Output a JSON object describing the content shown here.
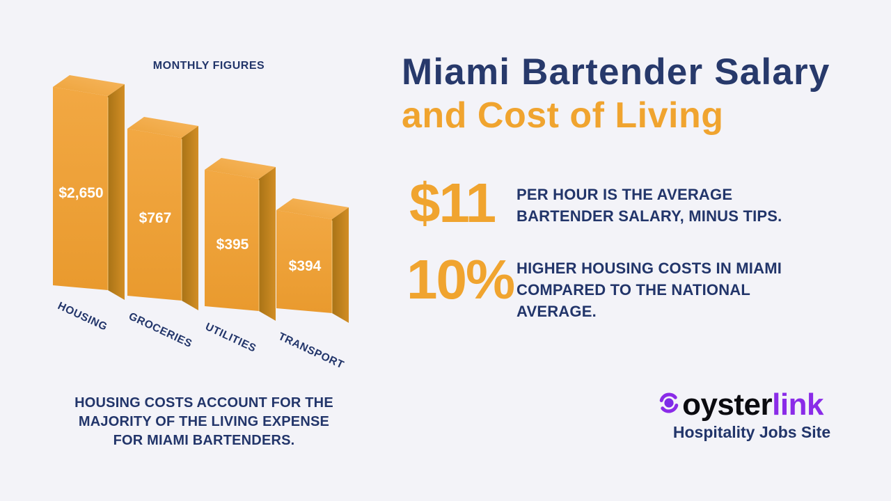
{
  "page": {
    "background": "#f3f3f8"
  },
  "chart": {
    "heading": "MONTHLY FIGURES",
    "caption_lines": [
      "HOUSING COSTS ACCOUNT FOR THE",
      "MAJORITY OF THE LIVING EXPENSE",
      "FOR MIAMI BARTENDERS."
    ]
  },
  "chart_data": {
    "type": "bar",
    "style": "3d-column-infographic",
    "title": "MONTHLY FIGURES",
    "categories": [
      "HOUSING",
      "GROCERIES",
      "UTILITIES",
      "TRANSPORT"
    ],
    "values": [
      2650,
      767,
      395,
      394
    ],
    "value_labels": [
      "$2,650",
      "$767",
      "$395",
      "$394"
    ],
    "legend": "none",
    "grid": false,
    "bar_front_color": "#EEA136",
    "bar_side_color": "#C08119",
    "bar_top_color": "#F3AC4B",
    "value_label_color": "#FFFFFF",
    "category_label_color": "#22356A"
  },
  "header": {
    "title_line1": "Miami Bartender Salary",
    "title_line2": "and Cost of Living"
  },
  "stats": [
    {
      "number": "$11",
      "lines": [
        "PER HOUR IS THE AVERAGE",
        "BARTENDER SALARY, MINUS TIPS."
      ]
    },
    {
      "number": "10%",
      "lines": [
        "HIGHER HOUSING COSTS IN MIAMI",
        "COMPARED TO THE NATIONAL",
        "AVERAGE."
      ]
    }
  ],
  "logo": {
    "icon": "oysterlink-pearl-icon",
    "word_black": "oyster",
    "word_purple": "link",
    "tagline": "Hospitality Jobs Site"
  },
  "colors": {
    "navy": "#22356A",
    "orange": "#F0A42F",
    "purple": "#8A2BE8",
    "black": "#0B0B10"
  }
}
